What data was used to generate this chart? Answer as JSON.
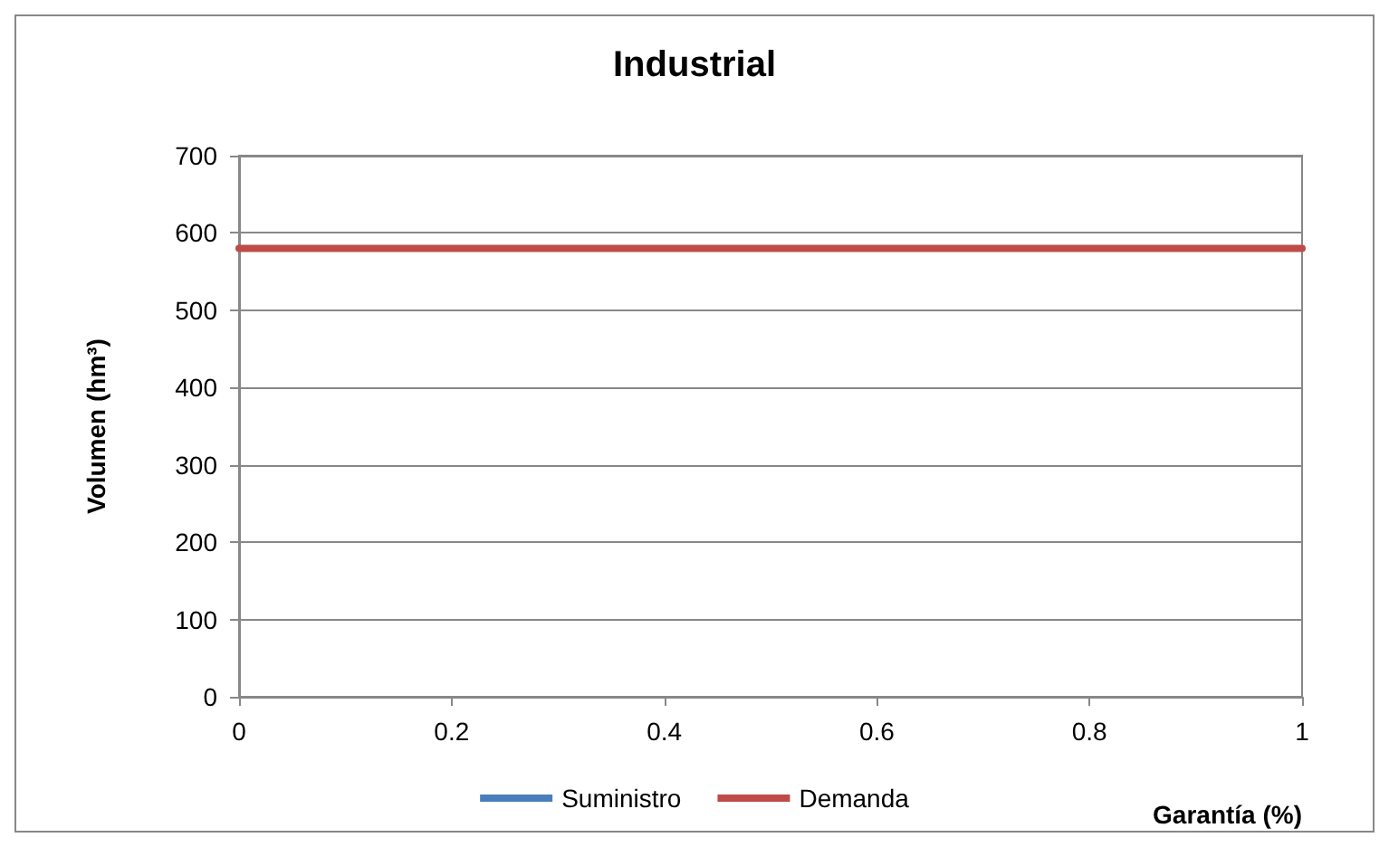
{
  "chart_data": {
    "type": "line",
    "title": "Industrial",
    "xlabel": "Garantía (%)",
    "ylabel": "Volumen (hm³)",
    "x": [
      0,
      1
    ],
    "series": [
      {
        "name": "Suministro",
        "color": "#4a7ebb",
        "values": [
          null,
          null
        ]
      },
      {
        "name": "Demanda",
        "color": "#be4b48",
        "values": [
          580,
          580
        ]
      }
    ],
    "xlim": [
      0,
      1
    ],
    "xticks": [
      0,
      0.2,
      0.4,
      0.6,
      0.8,
      1
    ],
    "ylim": [
      0,
      700
    ],
    "yticks": [
      0,
      100,
      200,
      300,
      400,
      500,
      600,
      700
    ],
    "grid": "y",
    "legend": "bottom",
    "marker": "none",
    "line_style": "solid"
  }
}
